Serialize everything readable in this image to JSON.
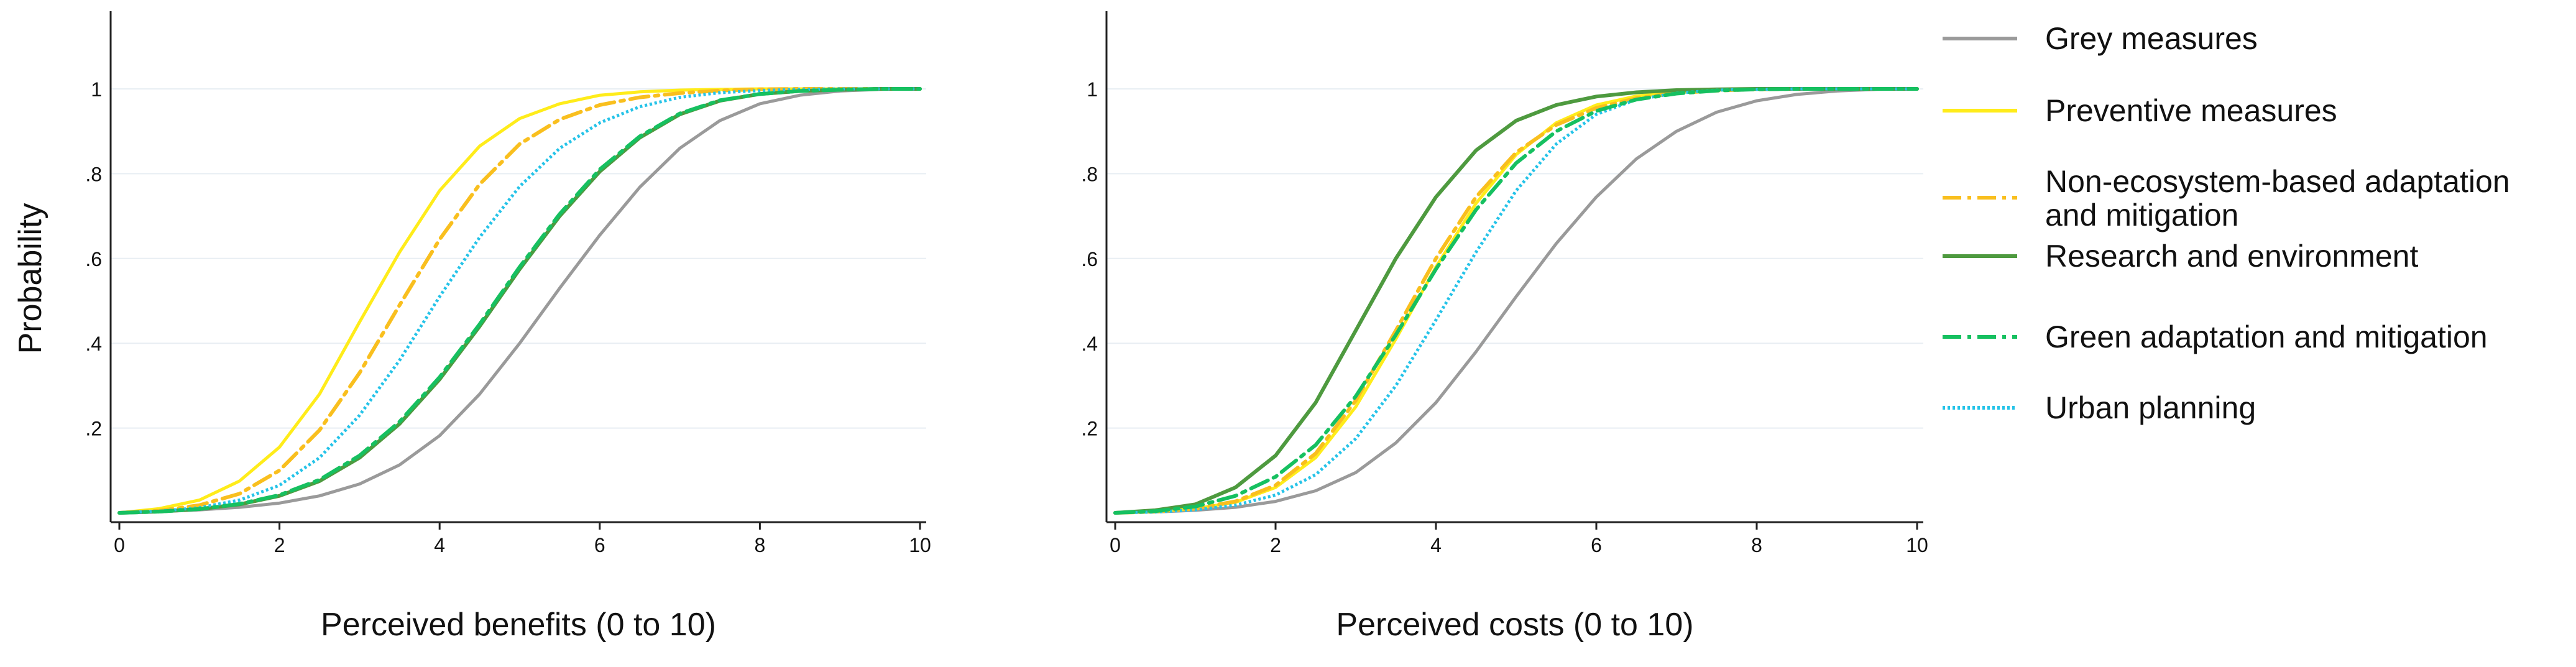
{
  "chart_data": [
    {
      "type": "line",
      "panel": "left",
      "xlabel": "Perceived benefits (0 to 10)",
      "ylabel": "Probability",
      "xlim": [
        0,
        10
      ],
      "ylim": [
        0,
        1.12
      ],
      "xticks": [
        0,
        2,
        4,
        6,
        8,
        10
      ],
      "xtick_labels": [
        "0",
        "2",
        "4",
        "6",
        "8",
        "10"
      ],
      "yticks": [
        0.2,
        0.4,
        0.6,
        0.8,
        1.0
      ],
      "ytick_labels": [
        ".2",
        ".4",
        ".6",
        ".8",
        "1"
      ],
      "x": [
        0,
        0.5,
        1,
        1.5,
        2,
        2.5,
        3,
        3.5,
        4,
        4.5,
        5,
        5.5,
        6,
        6.5,
        7,
        7.5,
        8,
        8.5,
        9,
        9.5,
        10
      ],
      "series": [
        {
          "name": "Grey measures",
          "values": [
            0.0,
            0.003,
            0.007,
            0.013,
            0.023,
            0.04,
            0.068,
            0.113,
            0.182,
            0.28,
            0.4,
            0.53,
            0.655,
            0.768,
            0.86,
            0.925,
            0.965,
            0.985,
            0.995,
            0.999,
            1.0
          ]
        },
        {
          "name": "Preventive measures",
          "values": [
            0.0,
            0.01,
            0.03,
            0.075,
            0.155,
            0.28,
            0.45,
            0.615,
            0.76,
            0.865,
            0.93,
            0.965,
            0.985,
            0.993,
            0.997,
            0.999,
            1.0,
            1.0,
            1.0,
            1.0,
            1.0
          ]
        },
        {
          "name": "Non-ecosystem-based adaptation and mitigation",
          "values": [
            0.0,
            0.005,
            0.018,
            0.045,
            0.1,
            0.195,
            0.33,
            0.49,
            0.645,
            0.775,
            0.87,
            0.928,
            0.962,
            0.98,
            0.99,
            0.996,
            0.999,
            1.0,
            1.0,
            1.0,
            1.0
          ]
        },
        {
          "name": "Research and environment",
          "values": [
            0.0,
            0.003,
            0.009,
            0.02,
            0.04,
            0.075,
            0.13,
            0.21,
            0.315,
            0.44,
            0.575,
            0.7,
            0.805,
            0.885,
            0.94,
            0.972,
            0.988,
            0.995,
            0.998,
            1.0,
            1.0
          ]
        },
        {
          "name": "Green adaptation and mitigation",
          "values": [
            0.0,
            0.003,
            0.009,
            0.021,
            0.042,
            0.078,
            0.135,
            0.215,
            0.32,
            0.445,
            0.58,
            0.705,
            0.81,
            0.888,
            0.942,
            0.973,
            0.988,
            0.995,
            0.998,
            1.0,
            1.0
          ]
        },
        {
          "name": "Urban planning",
          "values": [
            0.0,
            0.004,
            0.012,
            0.03,
            0.065,
            0.13,
            0.23,
            0.36,
            0.51,
            0.65,
            0.77,
            0.86,
            0.92,
            0.958,
            0.98,
            0.991,
            0.996,
            0.999,
            1.0,
            1.0,
            1.0
          ]
        }
      ]
    },
    {
      "type": "line",
      "panel": "right",
      "xlabel": "Perceived costs (0 to 10)",
      "ylabel": "",
      "xlim": [
        0,
        10
      ],
      "ylim": [
        0,
        1.12
      ],
      "xticks": [
        0,
        2,
        4,
        6,
        8,
        10
      ],
      "xtick_labels": [
        "0",
        "2",
        "4",
        "6",
        "8",
        "10"
      ],
      "yticks": [
        0.2,
        0.4,
        0.6,
        0.8,
        1.0
      ],
      "ytick_labels": [
        ".2",
        ".4",
        ".6",
        ".8",
        "1"
      ],
      "x": [
        0,
        0.5,
        1,
        1.5,
        2,
        2.5,
        3,
        3.5,
        4,
        4.5,
        5,
        5.5,
        6,
        6.5,
        7,
        7.5,
        8,
        8.5,
        9,
        9.5,
        10
      ],
      "series": [
        {
          "name": "Grey measures",
          "values": [
            0.0,
            0.002,
            0.006,
            0.013,
            0.027,
            0.052,
            0.095,
            0.165,
            0.26,
            0.38,
            0.51,
            0.635,
            0.745,
            0.835,
            0.9,
            0.945,
            0.972,
            0.987,
            0.995,
            0.999,
            1.0
          ]
        },
        {
          "name": "Preventive measures",
          "values": [
            0.0,
            0.003,
            0.01,
            0.025,
            0.06,
            0.13,
            0.25,
            0.41,
            0.58,
            0.73,
            0.845,
            0.92,
            0.962,
            0.983,
            0.993,
            0.997,
            0.999,
            1.0,
            1.0,
            1.0,
            1.0
          ]
        },
        {
          "name": "Non-ecosystem-based adaptation and mitigation",
          "values": [
            0.0,
            0.003,
            0.01,
            0.027,
            0.065,
            0.14,
            0.265,
            0.43,
            0.6,
            0.745,
            0.85,
            0.915,
            0.955,
            0.978,
            0.99,
            0.996,
            0.999,
            1.0,
            1.0,
            1.0,
            1.0
          ]
        },
        {
          "name": "Research and environment",
          "values": [
            0.0,
            0.006,
            0.02,
            0.06,
            0.135,
            0.26,
            0.43,
            0.6,
            0.745,
            0.855,
            0.925,
            0.962,
            0.982,
            0.992,
            0.997,
            0.999,
            1.0,
            1.0,
            1.0,
            1.0,
            1.0
          ]
        },
        {
          "name": "Green adaptation and mitigation",
          "values": [
            0.0,
            0.004,
            0.015,
            0.04,
            0.085,
            0.16,
            0.275,
            0.42,
            0.575,
            0.715,
            0.825,
            0.9,
            0.948,
            0.975,
            0.989,
            0.996,
            0.999,
            1.0,
            1.0,
            1.0,
            1.0
          ]
        },
        {
          "name": "Urban planning",
          "values": [
            0.0,
            0.002,
            0.007,
            0.018,
            0.042,
            0.09,
            0.175,
            0.3,
            0.455,
            0.615,
            0.76,
            0.87,
            0.94,
            0.975,
            0.99,
            0.997,
            0.999,
            1.0,
            1.0,
            1.0,
            1.0
          ]
        }
      ]
    }
  ],
  "legend": {
    "items": [
      {
        "label_lines": [
          "Grey measures"
        ],
        "color": "#9a9a9a",
        "style": "solid"
      },
      {
        "label_lines": [
          "Preventive measures"
        ],
        "color": "#ffec1a",
        "style": "solid"
      },
      {
        "label_lines": [
          "Non-ecosystem-based adaptation",
          "and mitigation"
        ],
        "color": "#f9bf1e",
        "style": "dashdot"
      },
      {
        "label_lines": [
          "Research and environment"
        ],
        "color": "#4e9a3f",
        "style": "solid"
      },
      {
        "label_lines": [
          "Green adaptation and mitigation"
        ],
        "color": "#16c060",
        "style": "dashdot"
      },
      {
        "label_lines": [
          "Urban planning"
        ],
        "color": "#25c3e8",
        "style": "dotted"
      }
    ]
  }
}
